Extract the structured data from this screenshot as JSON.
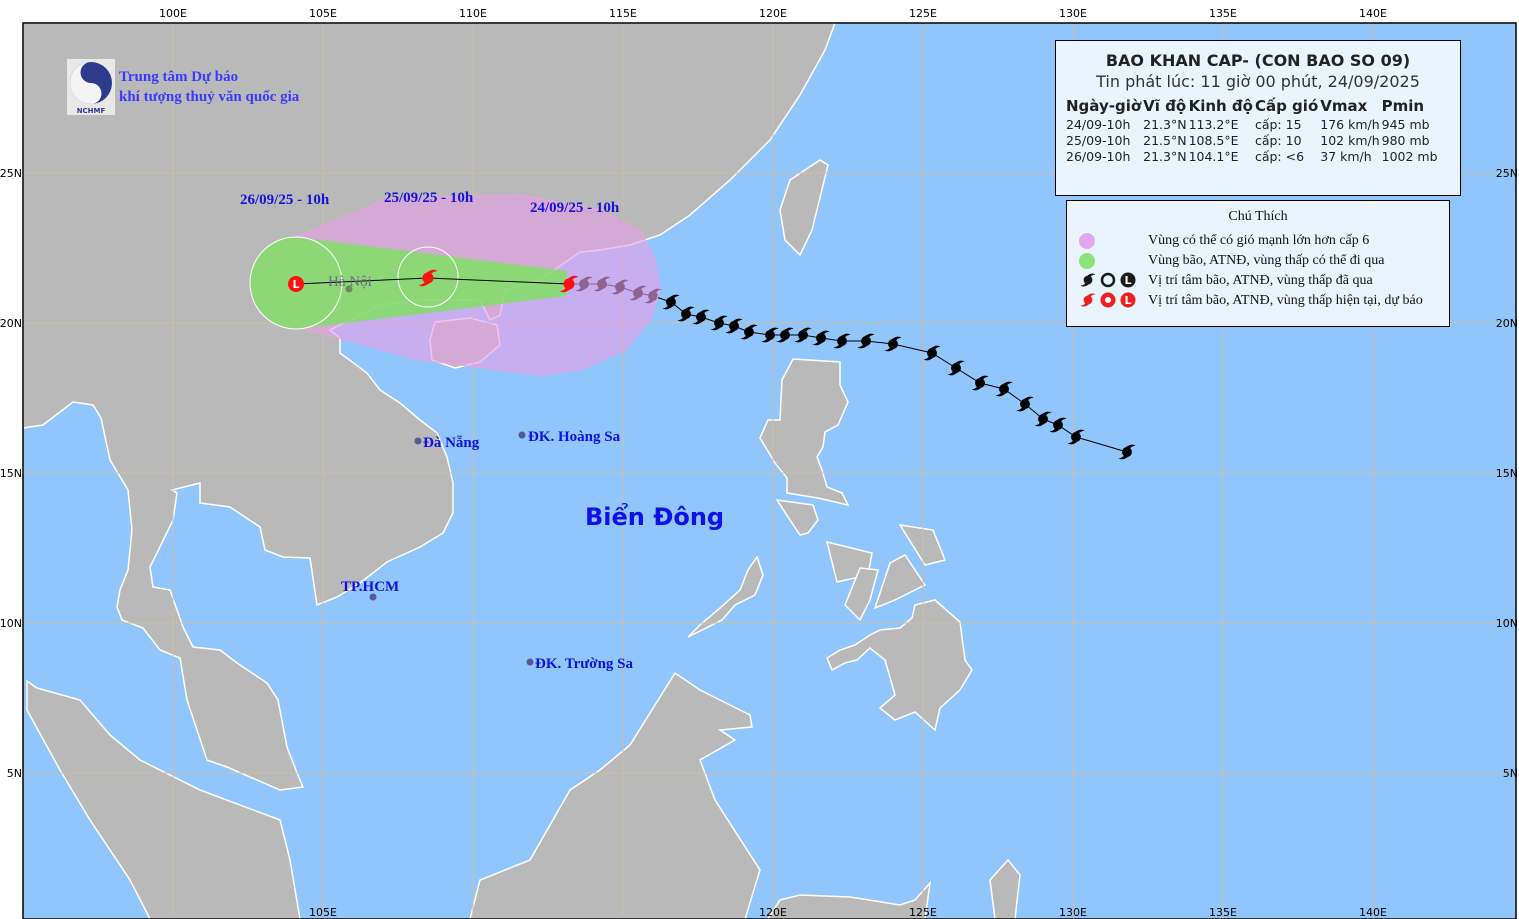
{
  "header": {
    "org_line1": "Trung tâm Dự báo",
    "org_line2": "khí tượng thuỷ văn quốc gia",
    "logo_text": "NCHMF"
  },
  "bulletin": {
    "title": "BAO KHAN CAP- (CON BAO SO 09)",
    "issued": "Tin phát lúc: 11 giờ 00 phút, 24/09/2025",
    "columns": [
      "Ngày-giờ",
      "Vĩ độ",
      "Kinh độ",
      "Cấp gió",
      "Vmax",
      "Pmin"
    ],
    "rows": [
      {
        "time": "24/09-10h",
        "lat": "21.3°N",
        "lon": "113.2°E",
        "level": "cấp: 15",
        "vmax": "176 km/h",
        "pmin": "945 mb"
      },
      {
        "time": "25/09-10h",
        "lat": "21.5°N",
        "lon": "108.5°E",
        "level": "cấp: 10",
        "vmax": "102 km/h",
        "pmin": "980 mb"
      },
      {
        "time": "26/09-10h",
        "lat": "21.3°N",
        "lon": "104.1°E",
        "level": "cấp: <6",
        "vmax": "37 km/h",
        "pmin": "1002 mb"
      }
    ]
  },
  "legend": {
    "title": "Chú Thích",
    "items": [
      {
        "label": "Vùng có thể có gió mạnh lớn hơn cấp 6",
        "color": "#e0a8f0"
      },
      {
        "label": "Vùng bão, ATNĐ, vùng thấp có thể đi qua",
        "color": "#8ee27a"
      },
      {
        "label": "Vị trí tâm bão, ATNĐ, vùng thấp đã qua",
        "color": "#1a1a1a"
      },
      {
        "label": "Vị trí tâm bão, ATNĐ, vùng thấp hiện tại, dự báo",
        "color": "#ee2020"
      }
    ]
  },
  "map": {
    "colors": {
      "sea": "#90c6fc",
      "land": "#b9b9b9",
      "grid": "#cbbfa8",
      "wind_zone": "#e6a0e6",
      "storm_zone": "#7ee060",
      "forecast": "#ff1010",
      "past": "#000000"
    },
    "lon_labels": [
      "100E",
      "105E",
      "110E",
      "115E",
      "120E",
      "125E",
      "130E",
      "135E",
      "140E"
    ],
    "lat_labels": [
      "25N",
      "20N",
      "15N",
      "10N",
      "5N"
    ],
    "places": {
      "hanoi": "Hà Nội",
      "danang": "Đà Nẵng",
      "hoangsa": "ĐK. Hoàng Sa",
      "hcm": "TP.HCM",
      "truongsa": "ĐK. Trường Sa",
      "sea": "Biển Đông"
    },
    "forecast_labels": [
      "24/09/25 - 10h",
      "25/09/25 - 10h",
      "26/09/25 - 10h"
    ],
    "forecast_track": [
      {
        "lat": 21.3,
        "lon": 113.2,
        "symbol": "storm"
      },
      {
        "lat": 21.5,
        "lon": 108.5,
        "symbol": "storm"
      },
      {
        "lat": 21.3,
        "lon": 104.1,
        "symbol": "low"
      }
    ],
    "past_track": [
      [
        21.3,
        113.7
      ],
      [
        21.3,
        114.3
      ],
      [
        21.2,
        114.9
      ],
      [
        21.0,
        115.5
      ],
      [
        20.9,
        116.0
      ],
      [
        20.7,
        116.6
      ],
      [
        20.3,
        117.1
      ],
      [
        20.2,
        117.6
      ],
      [
        20.0,
        118.2
      ],
      [
        19.9,
        118.7
      ],
      [
        19.7,
        119.2
      ],
      [
        19.6,
        119.9
      ],
      [
        19.6,
        120.4
      ],
      [
        19.6,
        121.0
      ],
      [
        19.5,
        121.6
      ],
      [
        19.4,
        122.3
      ],
      [
        19.4,
        123.1
      ],
      [
        19.3,
        124.0
      ],
      [
        19.0,
        125.3
      ],
      [
        18.5,
        126.1
      ],
      [
        18.0,
        126.9
      ],
      [
        17.8,
        127.7
      ],
      [
        17.3,
        128.4
      ],
      [
        16.8,
        129.0
      ],
      [
        16.6,
        129.5
      ],
      [
        16.2,
        130.1
      ],
      [
        15.7,
        131.8
      ]
    ]
  }
}
